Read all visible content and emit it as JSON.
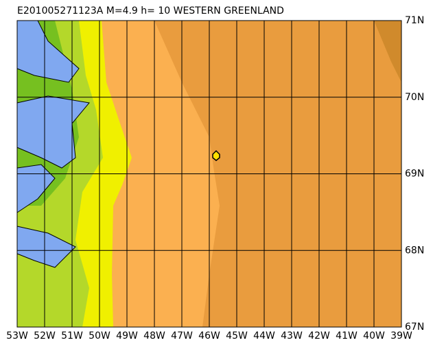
{
  "title": "E201005271123A M=4.9 h= 10 WESTERN GREENLAND",
  "lat_labels": [
    "71N",
    "70N",
    "69N",
    "68N",
    "67N"
  ],
  "lon_labels": [
    "53W",
    "52W",
    "51W",
    "50W",
    "49W",
    "48W",
    "47W",
    "46W",
    "45W",
    "44W",
    "43W",
    "42W",
    "41W",
    "40W",
    "39W"
  ]
}
